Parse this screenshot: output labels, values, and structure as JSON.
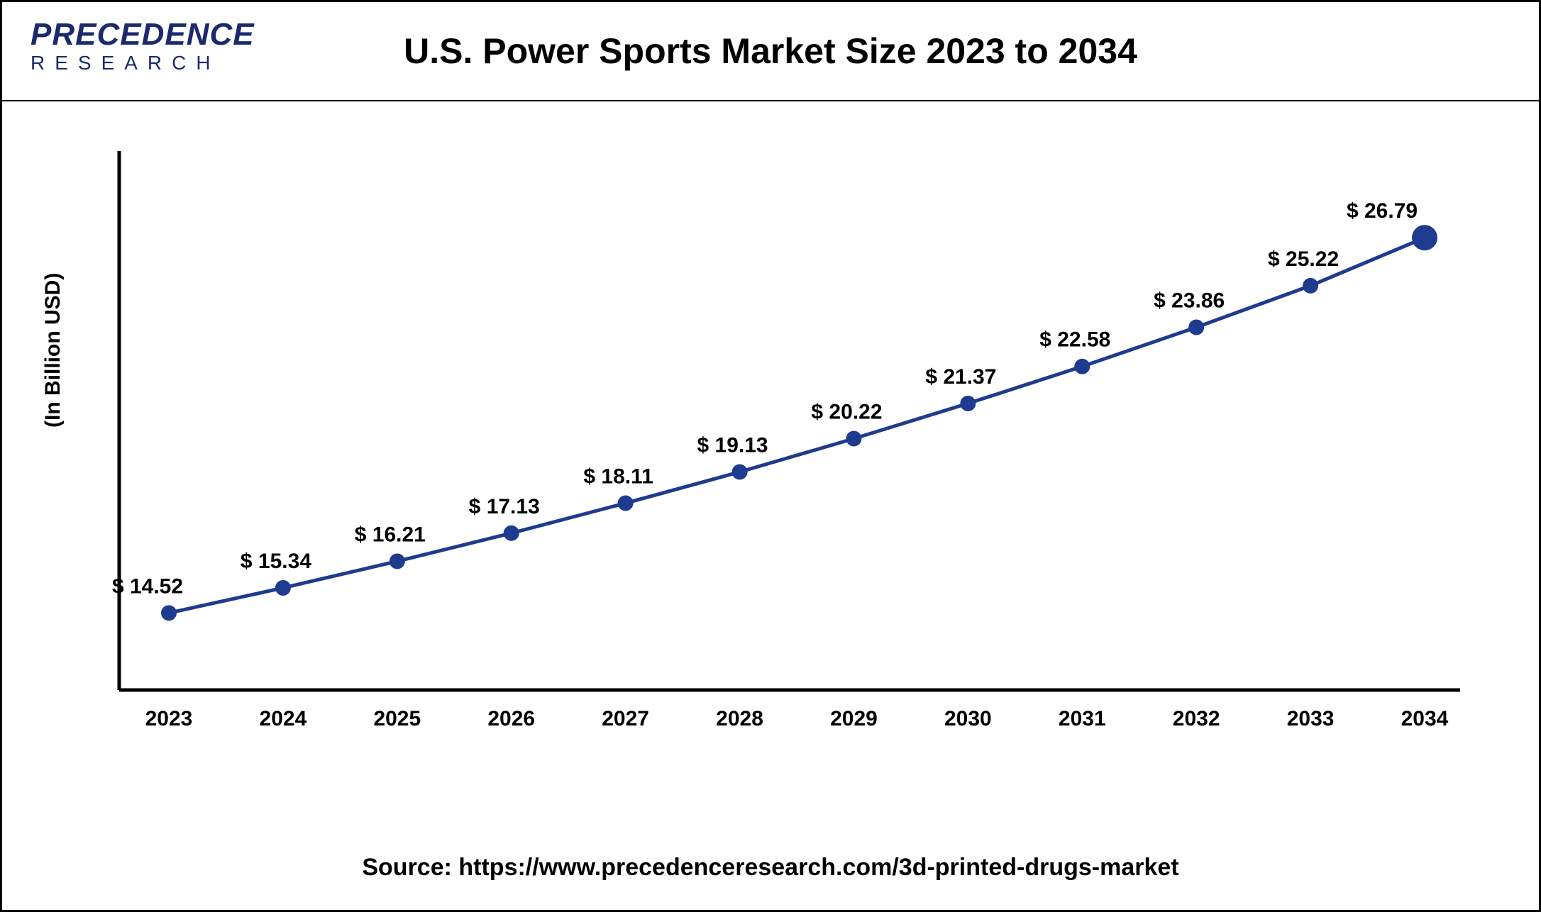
{
  "header": {
    "logo_top": "PRECEDENCE",
    "logo_bottom": "RESEARCH",
    "title": "U.S. Power Sports Market Size 2023 to 2034"
  },
  "chart": {
    "type": "line",
    "ylabel": "(In Billion USD)",
    "line_color": "#1f3b8f",
    "line_width": 5,
    "marker_color": "#1f3b8f",
    "marker_radius": 11,
    "last_marker_radius": 18,
    "axis_color": "#000000",
    "axis_width": 5,
    "background_color": "#ffffff",
    "label_fontsize": 30,
    "value_fontsize": 30,
    "value_color": "#000000",
    "y_min": 12,
    "y_max": 28,
    "x_labels": [
      "2023",
      "2024",
      "2025",
      "2026",
      "2027",
      "2028",
      "2029",
      "2030",
      "2031",
      "2032",
      "2033",
      "2034"
    ],
    "values": [
      14.52,
      15.34,
      16.21,
      17.13,
      18.11,
      19.13,
      20.22,
      21.37,
      22.58,
      23.86,
      25.22,
      26.79
    ],
    "value_labels": [
      "$ 14.52",
      "$ 15.34",
      "$ 16.21",
      "$ 17.13",
      "$ 18.11",
      "$ 19.13",
      "$ 20.22",
      "$ 21.37",
      "$ 22.58",
      "$ 23.86",
      "$ 25.22",
      "$ 26.79"
    ]
  },
  "source": "Source: https://www.precedenceresearch.com/3d-printed-drugs-market"
}
